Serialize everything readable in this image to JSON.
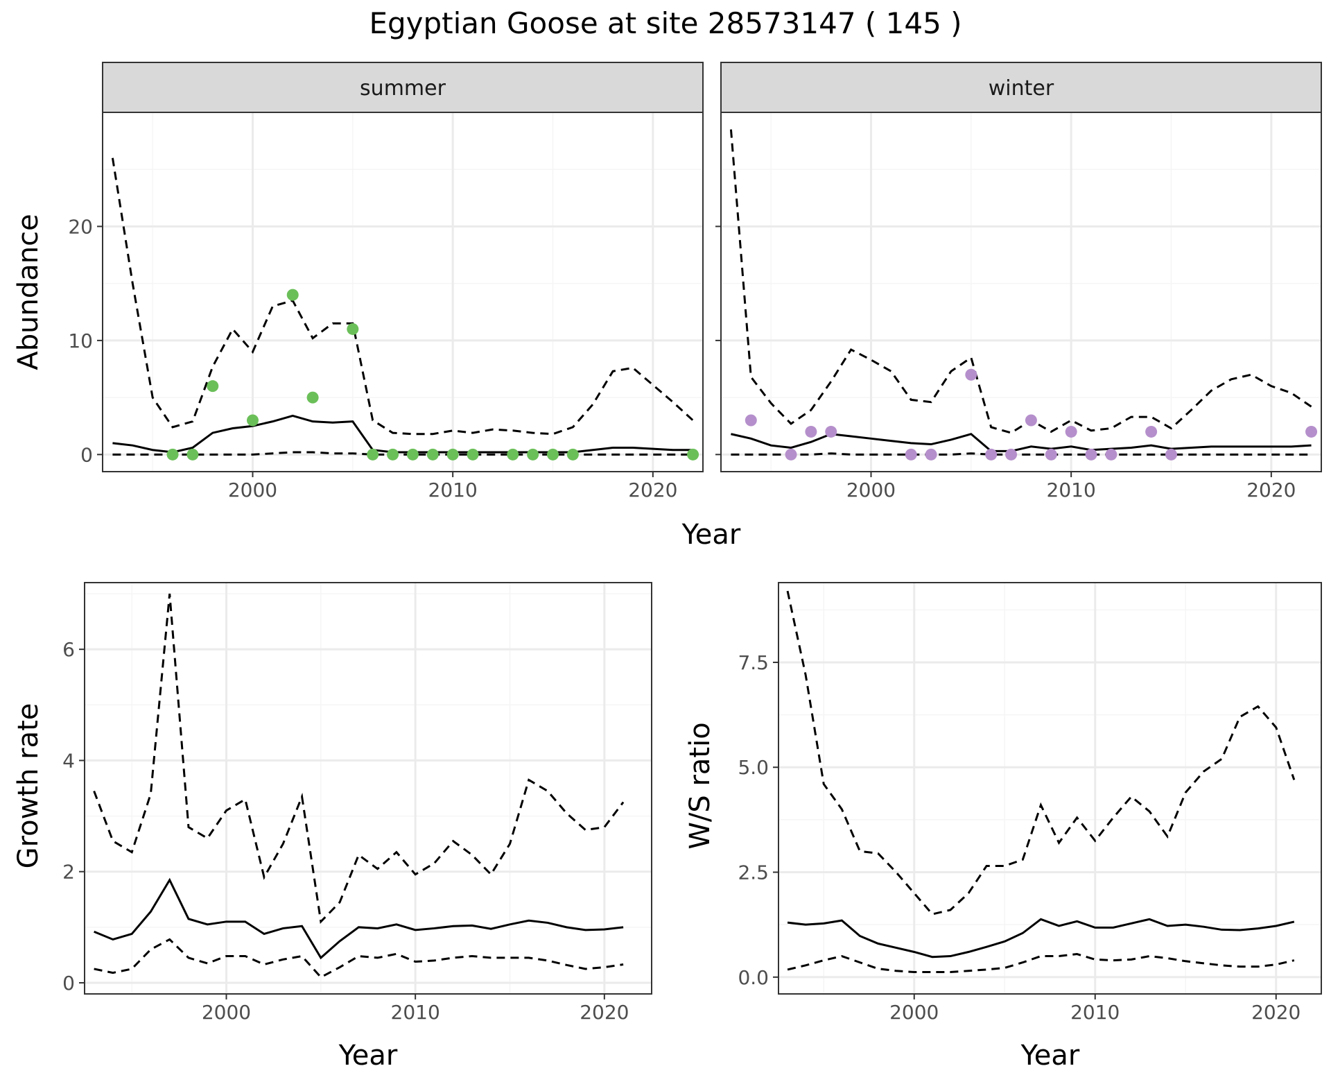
{
  "title": "Egyptian Goose at site 28573147 ( 145 )",
  "colors": {
    "summer_points": "#6BBF59",
    "winter_points": "#B58FCB",
    "line": "#000000",
    "grid_major": "#EBEBEB",
    "grid_minor": "#F5F5F5",
    "strip_fill": "#D9D9D9"
  },
  "chart_data": [
    {
      "type": "line",
      "panel": "abundance",
      "facets": [
        "summer",
        "winter"
      ],
      "xlabel": "Year",
      "ylabel": "Abundance",
      "xlim": [
        1992.5,
        2022.5
      ],
      "ylim": [
        -1.5,
        30
      ],
      "xticks": [
        2000,
        2010,
        2020
      ],
      "yticks": [
        0,
        10,
        20
      ],
      "grid": true,
      "facet_data": [
        {
          "name": "summer",
          "years": [
            1993,
            1994,
            1995,
            1996,
            1997,
            1998,
            1999,
            2000,
            2001,
            2002,
            2003,
            2004,
            2005,
            2006,
            2007,
            2008,
            2009,
            2010,
            2011,
            2012,
            2013,
            2014,
            2015,
            2016,
            2017,
            2018,
            2019,
            2020,
            2021,
            2022
          ],
          "mean": [
            1.0,
            0.8,
            0.4,
            0.2,
            0.6,
            1.9,
            2.3,
            2.5,
            2.9,
            3.4,
            2.9,
            2.8,
            2.9,
            0.4,
            0.2,
            0.2,
            0.2,
            0.2,
            0.2,
            0.2,
            0.2,
            0.2,
            0.2,
            0.2,
            0.4,
            0.6,
            0.6,
            0.5,
            0.4,
            0.4
          ],
          "upper": [
            26,
            15,
            5,
            2.4,
            2.9,
            7.7,
            11,
            9,
            13,
            13.5,
            10.2,
            11.5,
            11.5,
            3,
            1.9,
            1.8,
            1.8,
            2.1,
            1.9,
            2.2,
            2.1,
            1.9,
            1.8,
            2.4,
            4.4,
            7.3,
            7.6,
            6.1,
            4.6,
            3.0
          ],
          "lower": [
            0,
            0,
            0,
            0,
            0,
            0,
            0,
            0,
            0.1,
            0.2,
            0.2,
            0.1,
            0.1,
            0,
            0,
            0,
            0,
            0,
            0,
            0,
            0,
            0,
            0,
            0,
            0,
            0,
            0,
            0,
            0,
            0
          ],
          "observed": [
            {
              "x": 1996,
              "y": 0
            },
            {
              "x": 1997,
              "y": 0
            },
            {
              "x": 1998,
              "y": 6
            },
            {
              "x": 2000,
              "y": 3
            },
            {
              "x": 2002,
              "y": 14
            },
            {
              "x": 2003,
              "y": 5
            },
            {
              "x": 2005,
              "y": 11
            },
            {
              "x": 2006,
              "y": 0
            },
            {
              "x": 2007,
              "y": 0
            },
            {
              "x": 2008,
              "y": 0
            },
            {
              "x": 2009,
              "y": 0
            },
            {
              "x": 2010,
              "y": 0
            },
            {
              "x": 2011,
              "y": 0
            },
            {
              "x": 2013,
              "y": 0
            },
            {
              "x": 2014,
              "y": 0
            },
            {
              "x": 2015,
              "y": 0
            },
            {
              "x": 2016,
              "y": 0
            },
            {
              "x": 2022,
              "y": 0
            }
          ]
        },
        {
          "name": "winter",
          "years": [
            1993,
            1994,
            1995,
            1996,
            1997,
            1998,
            1999,
            2000,
            2001,
            2002,
            2003,
            2004,
            2005,
            2006,
            2007,
            2008,
            2009,
            2010,
            2011,
            2012,
            2013,
            2014,
            2015,
            2016,
            2017,
            2018,
            2019,
            2020,
            2021,
            2022
          ],
          "mean": [
            1.8,
            1.4,
            0.8,
            0.6,
            1.1,
            1.8,
            1.6,
            1.4,
            1.2,
            1.0,
            0.9,
            1.3,
            1.8,
            0.3,
            0.3,
            0.7,
            0.5,
            0.7,
            0.4,
            0.5,
            0.6,
            0.8,
            0.5,
            0.6,
            0.7,
            0.7,
            0.7,
            0.7,
            0.7,
            0.8
          ],
          "upper": [
            28.5,
            6.8,
            4.5,
            2.7,
            3.9,
            6.4,
            9.2,
            8.3,
            7.3,
            4.8,
            4.6,
            7.3,
            8.5,
            2.4,
            1.9,
            3.0,
            2.0,
            3.0,
            2.1,
            2.3,
            3.3,
            3.3,
            2.3,
            3.9,
            5.6,
            6.6,
            7.0,
            6.0,
            5.4,
            4.2
          ],
          "lower": [
            0,
            0,
            0,
            0,
            0,
            0.1,
            0,
            0,
            0,
            0,
            0,
            0,
            0.1,
            0,
            0,
            0,
            0,
            0,
            0,
            0,
            0,
            0,
            0,
            0,
            0,
            0,
            0,
            0,
            0,
            0
          ],
          "observed": [
            {
              "x": 1994,
              "y": 3
            },
            {
              "x": 1996,
              "y": 0
            },
            {
              "x": 1997,
              "y": 2
            },
            {
              "x": 1998,
              "y": 2
            },
            {
              "x": 2002,
              "y": 0
            },
            {
              "x": 2003,
              "y": 0
            },
            {
              "x": 2005,
              "y": 7
            },
            {
              "x": 2006,
              "y": 0
            },
            {
              "x": 2007,
              "y": 0
            },
            {
              "x": 2008,
              "y": 3
            },
            {
              "x": 2009,
              "y": 0
            },
            {
              "x": 2010,
              "y": 2
            },
            {
              "x": 2011,
              "y": 0
            },
            {
              "x": 2012,
              "y": 0
            },
            {
              "x": 2014,
              "y": 2
            },
            {
              "x": 2015,
              "y": 0
            },
            {
              "x": 2022,
              "y": 2
            }
          ]
        }
      ]
    },
    {
      "type": "line",
      "panel": "growth",
      "xlabel": "Year",
      "ylabel": "Growth rate",
      "xlim": [
        1992.5,
        2022.5
      ],
      "ylim": [
        -0.2,
        7.2
      ],
      "xticks": [
        2000,
        2010,
        2020
      ],
      "yticks": [
        0,
        2,
        4,
        6
      ],
      "grid": true,
      "years": [
        1993,
        1994,
        1995,
        1996,
        1997,
        1998,
        1999,
        2000,
        2001,
        2002,
        2003,
        2004,
        2005,
        2006,
        2007,
        2008,
        2009,
        2010,
        2011,
        2012,
        2013,
        2014,
        2015,
        2016,
        2017,
        2018,
        2019,
        2020,
        2021
      ],
      "mean": [
        0.92,
        0.78,
        0.88,
        1.28,
        1.85,
        1.15,
        1.05,
        1.1,
        1.1,
        0.88,
        0.98,
        1.02,
        0.45,
        0.75,
        1.0,
        0.98,
        1.05,
        0.95,
        0.98,
        1.02,
        1.03,
        0.97,
        1.05,
        1.12,
        1.08,
        1.0,
        0.95,
        0.96,
        1.0
      ],
      "upper": [
        3.45,
        2.55,
        2.35,
        3.4,
        7.0,
        2.8,
        2.6,
        3.1,
        3.3,
        1.9,
        2.5,
        3.35,
        1.1,
        1.45,
        2.3,
        2.05,
        2.35,
        1.95,
        2.15,
        2.55,
        2.3,
        1.95,
        2.5,
        3.65,
        3.45,
        3.05,
        2.75,
        2.8,
        3.25
      ],
      "lower": [
        0.25,
        0.18,
        0.25,
        0.6,
        0.78,
        0.45,
        0.35,
        0.48,
        0.48,
        0.33,
        0.42,
        0.48,
        0.1,
        0.28,
        0.48,
        0.45,
        0.52,
        0.38,
        0.4,
        0.45,
        0.48,
        0.45,
        0.45,
        0.45,
        0.4,
        0.32,
        0.25,
        0.28,
        0.33
      ]
    },
    {
      "type": "line",
      "panel": "ratio",
      "xlabel": "Year",
      "ylabel": "W/S ratio",
      "xlim": [
        1992.5,
        2022.5
      ],
      "ylim": [
        -0.4,
        9.4
      ],
      "xticks": [
        2000,
        2010,
        2020
      ],
      "yticks": [
        0.0,
        2.5,
        5.0,
        7.5
      ],
      "ytick_labels": [
        "0.0",
        "2.5",
        "5.0",
        "7.5"
      ],
      "grid": true,
      "years": [
        1993,
        1994,
        1995,
        1996,
        1997,
        1998,
        1999,
        2000,
        2001,
        2002,
        2003,
        2004,
        2005,
        2006,
        2007,
        2008,
        2009,
        2010,
        2011,
        2012,
        2013,
        2014,
        2015,
        2016,
        2017,
        2018,
        2019,
        2020,
        2021
      ],
      "mean": [
        1.3,
        1.25,
        1.28,
        1.35,
        0.98,
        0.8,
        0.7,
        0.6,
        0.48,
        0.5,
        0.6,
        0.72,
        0.85,
        1.05,
        1.38,
        1.22,
        1.33,
        1.18,
        1.18,
        1.28,
        1.38,
        1.22,
        1.25,
        1.2,
        1.13,
        1.12,
        1.16,
        1.22,
        1.32
      ],
      "upper": [
        9.2,
        7.2,
        4.6,
        4.0,
        3.0,
        2.95,
        2.5,
        2.0,
        1.5,
        1.6,
        2.0,
        2.65,
        2.65,
        2.8,
        4.1,
        3.2,
        3.8,
        3.25,
        3.8,
        4.3,
        3.95,
        3.35,
        4.4,
        4.9,
        5.2,
        6.2,
        6.45,
        5.95,
        4.7
      ],
      "lower": [
        0.18,
        0.28,
        0.4,
        0.5,
        0.35,
        0.2,
        0.15,
        0.12,
        0.12,
        0.12,
        0.15,
        0.18,
        0.22,
        0.35,
        0.5,
        0.5,
        0.55,
        0.42,
        0.4,
        0.42,
        0.5,
        0.45,
        0.38,
        0.33,
        0.28,
        0.25,
        0.25,
        0.3,
        0.4
      ]
    }
  ]
}
